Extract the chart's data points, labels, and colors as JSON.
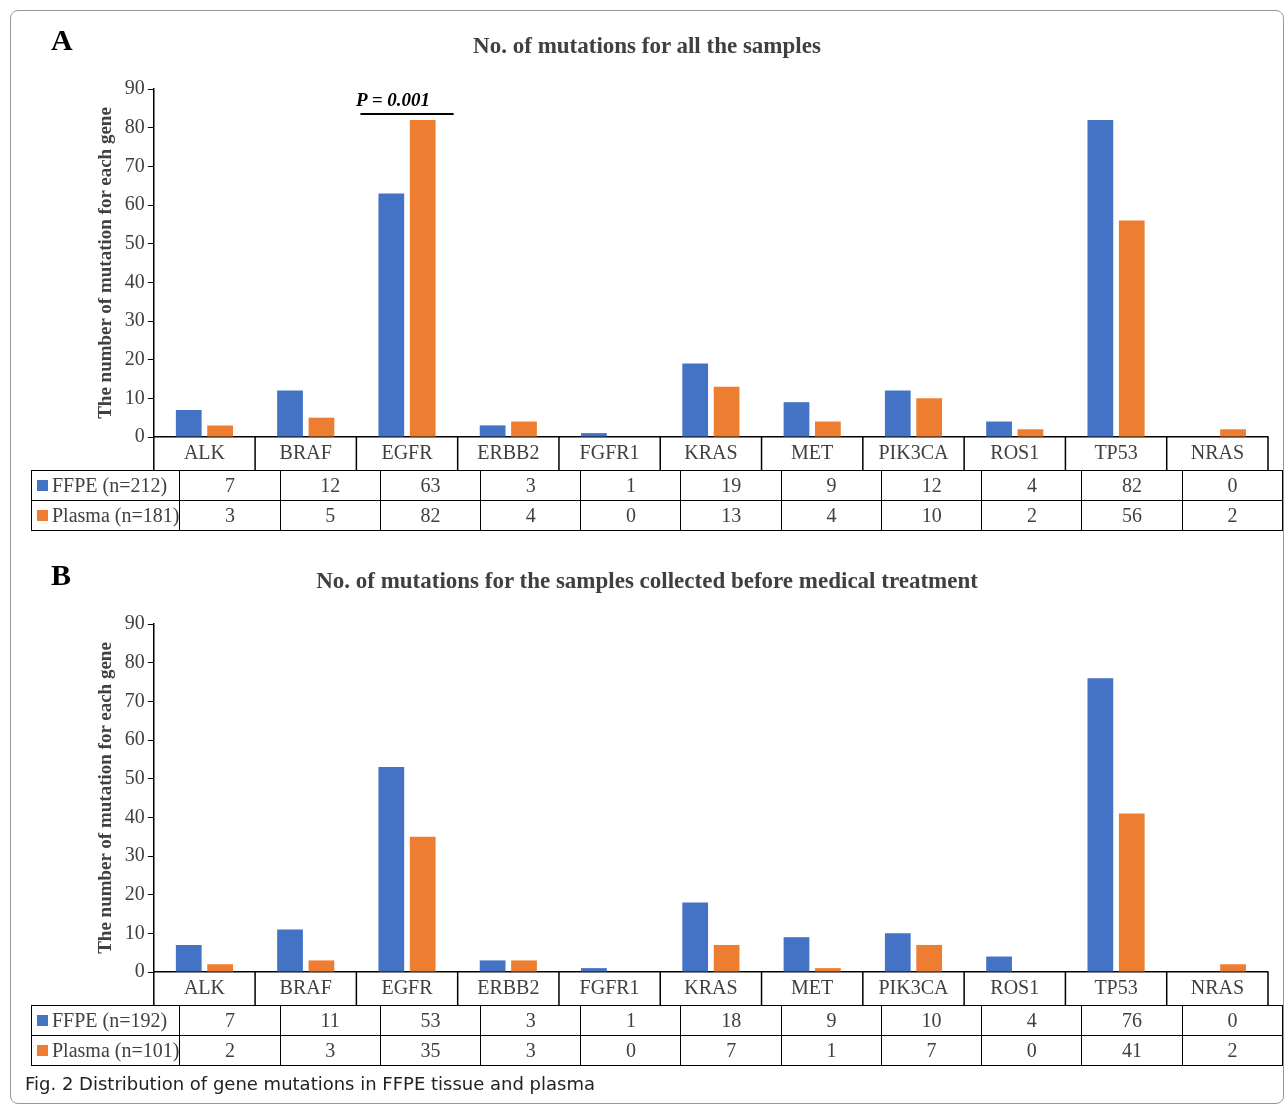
{
  "chart_data": [
    {
      "type": "bar",
      "title": "No. of mutations for all the samples",
      "ylabel": "The number of mutation for each gene",
      "categories": [
        "ALK",
        "BRAF",
        "EGFR",
        "ERBB2",
        "FGFR1",
        "KRAS",
        "MET",
        "PIK3CA",
        "ROS1",
        "TP53",
        "NRAS"
      ],
      "series": [
        {
          "name": "FFPE (n=212)",
          "color": "#4472c4",
          "values": [
            7,
            12,
            63,
            3,
            1,
            19,
            9,
            12,
            4,
            82,
            0
          ]
        },
        {
          "name": "Plasma (n=181)",
          "color": "#ed7d31",
          "values": [
            3,
            5,
            82,
            4,
            0,
            13,
            4,
            10,
            2,
            56,
            2
          ]
        }
      ],
      "ylim": [
        0,
        90
      ],
      "yticks": [
        0,
        10,
        20,
        30,
        40,
        50,
        60,
        70,
        80,
        90
      ],
      "data_labels": true,
      "legend": "bottom",
      "annotations": [
        "A",
        {
          "text": "P = 0.001",
          "x": "EGFR",
          "y": 82
        }
      ]
    },
    {
      "type": "bar",
      "title": "No. of mutations for the samples collected before medical treatment",
      "ylabel": "The number of mutation for each gene",
      "categories": [
        "ALK",
        "BRAF",
        "EGFR",
        "ERBB2",
        "FGFR1",
        "KRAS",
        "MET",
        "PIK3CA",
        "ROS1",
        "TP53",
        "NRAS"
      ],
      "series": [
        {
          "name": "FFPE (n=192)",
          "color": "#4472c4",
          "values": [
            7,
            11,
            53,
            3,
            1,
            18,
            9,
            10,
            4,
            76,
            0
          ]
        },
        {
          "name": "Plasma (n=101)",
          "color": "#ed7d31",
          "values": [
            2,
            3,
            35,
            3,
            0,
            7,
            1,
            7,
            0,
            41,
            2
          ]
        }
      ],
      "ylim": [
        0,
        90
      ],
      "yticks": [
        0,
        10,
        20,
        30,
        40,
        50,
        60,
        70,
        80,
        90
      ],
      "data_labels": true,
      "legend": "bottom",
      "annotations": [
        "B",
        "Fig. 2  Distribution of gene mutations in FFPE tissue and plasma"
      ]
    }
  ]
}
